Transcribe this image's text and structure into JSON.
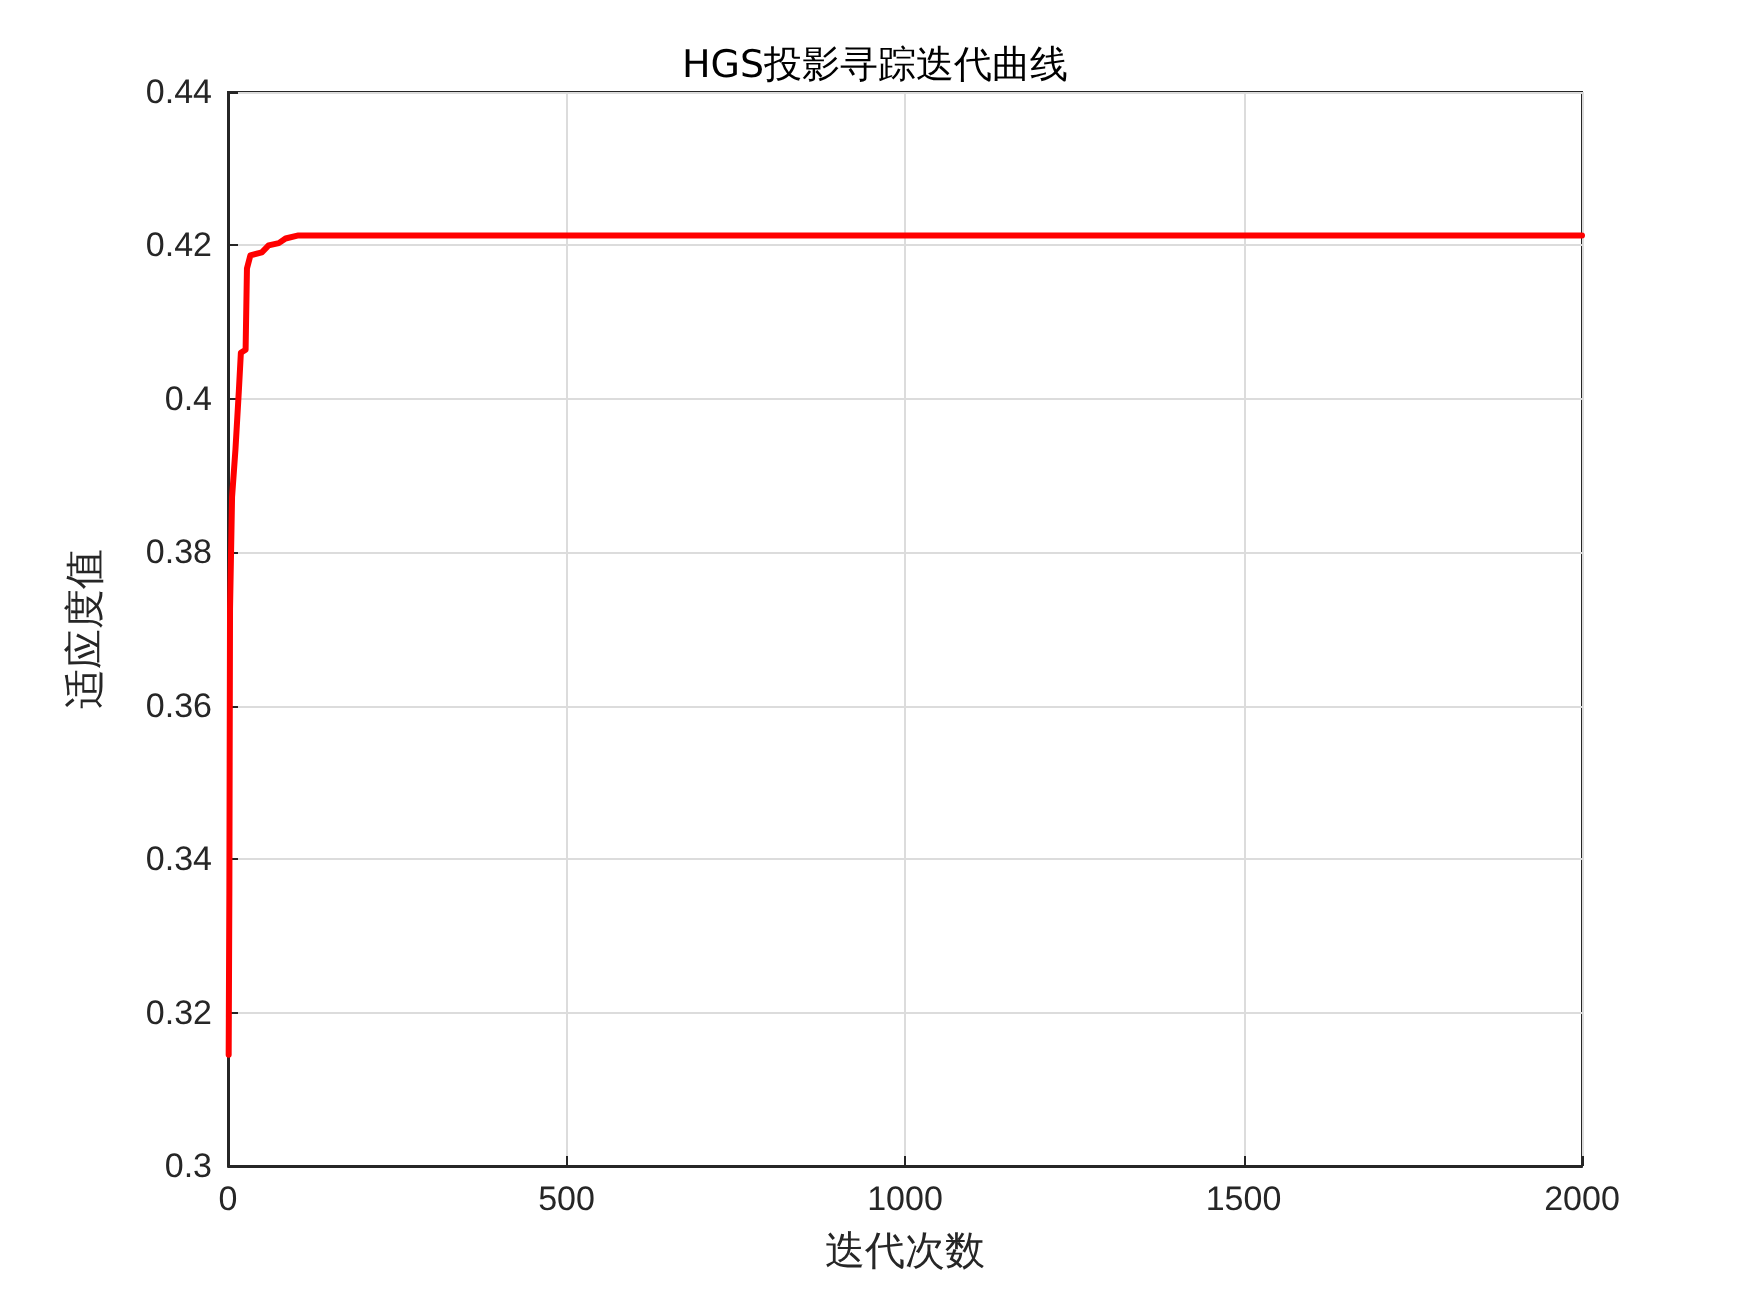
{
  "chart_data": {
    "type": "line",
    "title": "HGS投影寻踪迭代曲线",
    "xlabel": "迭代次数",
    "ylabel": "适应度值",
    "series": [
      {
        "color": "#ff0000",
        "x": [
          1,
          2,
          3,
          6,
          11,
          16,
          19,
          26,
          28,
          33,
          50,
          60,
          75,
          85,
          104,
          200,
          500,
          1000,
          1500,
          2000
        ],
        "values": [
          0.3145,
          0.3355,
          0.3726,
          0.3872,
          0.3934,
          0.401,
          0.406,
          0.4064,
          0.417,
          0.4187,
          0.4191,
          0.42,
          0.4203,
          0.4209,
          0.4213,
          0.4213,
          0.4213,
          0.4213,
          0.4213,
          0.4213
        ]
      }
    ],
    "xlim": [
      0,
      2000
    ],
    "xticks": [
      0,
      500,
      1000,
      1500,
      2000
    ],
    "ylim": [
      0.3,
      0.44
    ],
    "yticks": [
      0.3,
      0.32,
      0.34,
      0.36,
      0.38,
      0.4,
      0.42,
      0.44
    ],
    "grid": true,
    "marker": "none",
    "line_style": "solid"
  }
}
